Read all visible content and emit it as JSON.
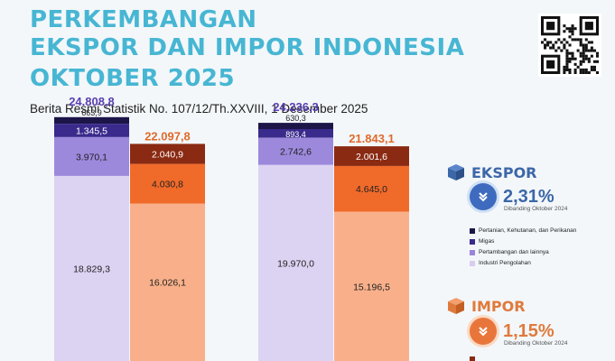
{
  "header": {
    "title_lines": [
      "PERKEMBANGAN",
      "EKSPOR DAN IMPOR INDONESIA",
      "OKTOBER 2025"
    ],
    "subtitle": "Berita Resmi Statistik No. 107/12/Th.XXVIII, 1 Desember 2025"
  },
  "panel": {
    "ekspor": {
      "label": "EKSPOR",
      "change": "2,31%",
      "caption": "Dibanding Oktober 2024",
      "direction": "down",
      "icon": "chevron-down-icon",
      "accent": "#3c67a8"
    },
    "impor": {
      "label": "IMPOR",
      "change": "1,15%",
      "caption": "Dibanding Oktober 2024",
      "direction": "down",
      "icon": "chevron-down-icon",
      "accent": "#e07a3c"
    },
    "ekspor_legend": [
      {
        "label": "Pertanian, Kehutanan, dan Perikanan",
        "color": "#1c1548"
      },
      {
        "label": "Migas",
        "color": "#3a2a8c"
      },
      {
        "label": "Pertambangan dan lainnya",
        "color": "#9a86d9"
      },
      {
        "label": "Industri Pengolahan",
        "color": "#d8cdf0"
      }
    ]
  },
  "chart_data": {
    "type": "bar",
    "stacked": true,
    "groups": [
      {
        "bars": [
          {
            "series": "ekspor",
            "total": 24808.8,
            "total_label": "24.808,8",
            "segments": [
              {
                "category": "Industri Pengolahan",
                "value": 18829.3,
                "label": "18.829,3",
                "color": "#dcd2f2"
              },
              {
                "category": "Pertambangan dan lainnya",
                "value": 3970.1,
                "label": "3.970,1",
                "color": "#9c89dc"
              },
              {
                "category": "Migas",
                "value": 1345.5,
                "label": "1.345,5",
                "color": "#3a2a8c"
              },
              {
                "category": "Pertanian, Kehutanan, dan Perikanan",
                "value": 663.9,
                "label": "663,9",
                "color": "#1c1548"
              }
            ]
          },
          {
            "series": "impor",
            "total": 22097.8,
            "total_label": "22.097,8",
            "segments": [
              {
                "value": 16026.1,
                "label": "16.026,1",
                "color": "#f9b08a"
              },
              {
                "value": 4030.8,
                "label": "4.030,8",
                "color": "#f06a2a"
              },
              {
                "value": 2040.9,
                "label": "2.040,9",
                "color": "#8a2a12"
              }
            ]
          }
        ]
      },
      {
        "bars": [
          {
            "series": "ekspor",
            "total": 24236.3,
            "total_label": "24.236,3",
            "segments": [
              {
                "category": "Industri Pengolahan",
                "value": 19970.0,
                "label": "19.970,0",
                "color": "#dcd2f2"
              },
              {
                "category": "Pertambangan dan lainnya",
                "value": 2742.6,
                "label": "2.742,6",
                "color": "#9c89dc"
              },
              {
                "category": "Migas",
                "value": 893.4,
                "label": "893,4",
                "color": "#3a2a8c"
              },
              {
                "category": "Pertanian, Kehutanan, dan Perikanan",
                "value": 630.3,
                "label": "630,3",
                "color": "#1c1548"
              }
            ]
          },
          {
            "series": "impor",
            "total": 21843.1,
            "total_label": "21.843,1",
            "segments": [
              {
                "value": 15196.5,
                "label": "15.196,5",
                "color": "#f9b08a"
              },
              {
                "value": 4645.0,
                "label": "4.645,0",
                "color": "#f06a2a"
              },
              {
                "value": 2001.6,
                "label": "2.001,6",
                "color": "#8a2a12"
              }
            ]
          }
        ]
      }
    ],
    "total_label_colors": {
      "ekspor": "#5a3fb0",
      "impor": "#e06a2a"
    }
  }
}
